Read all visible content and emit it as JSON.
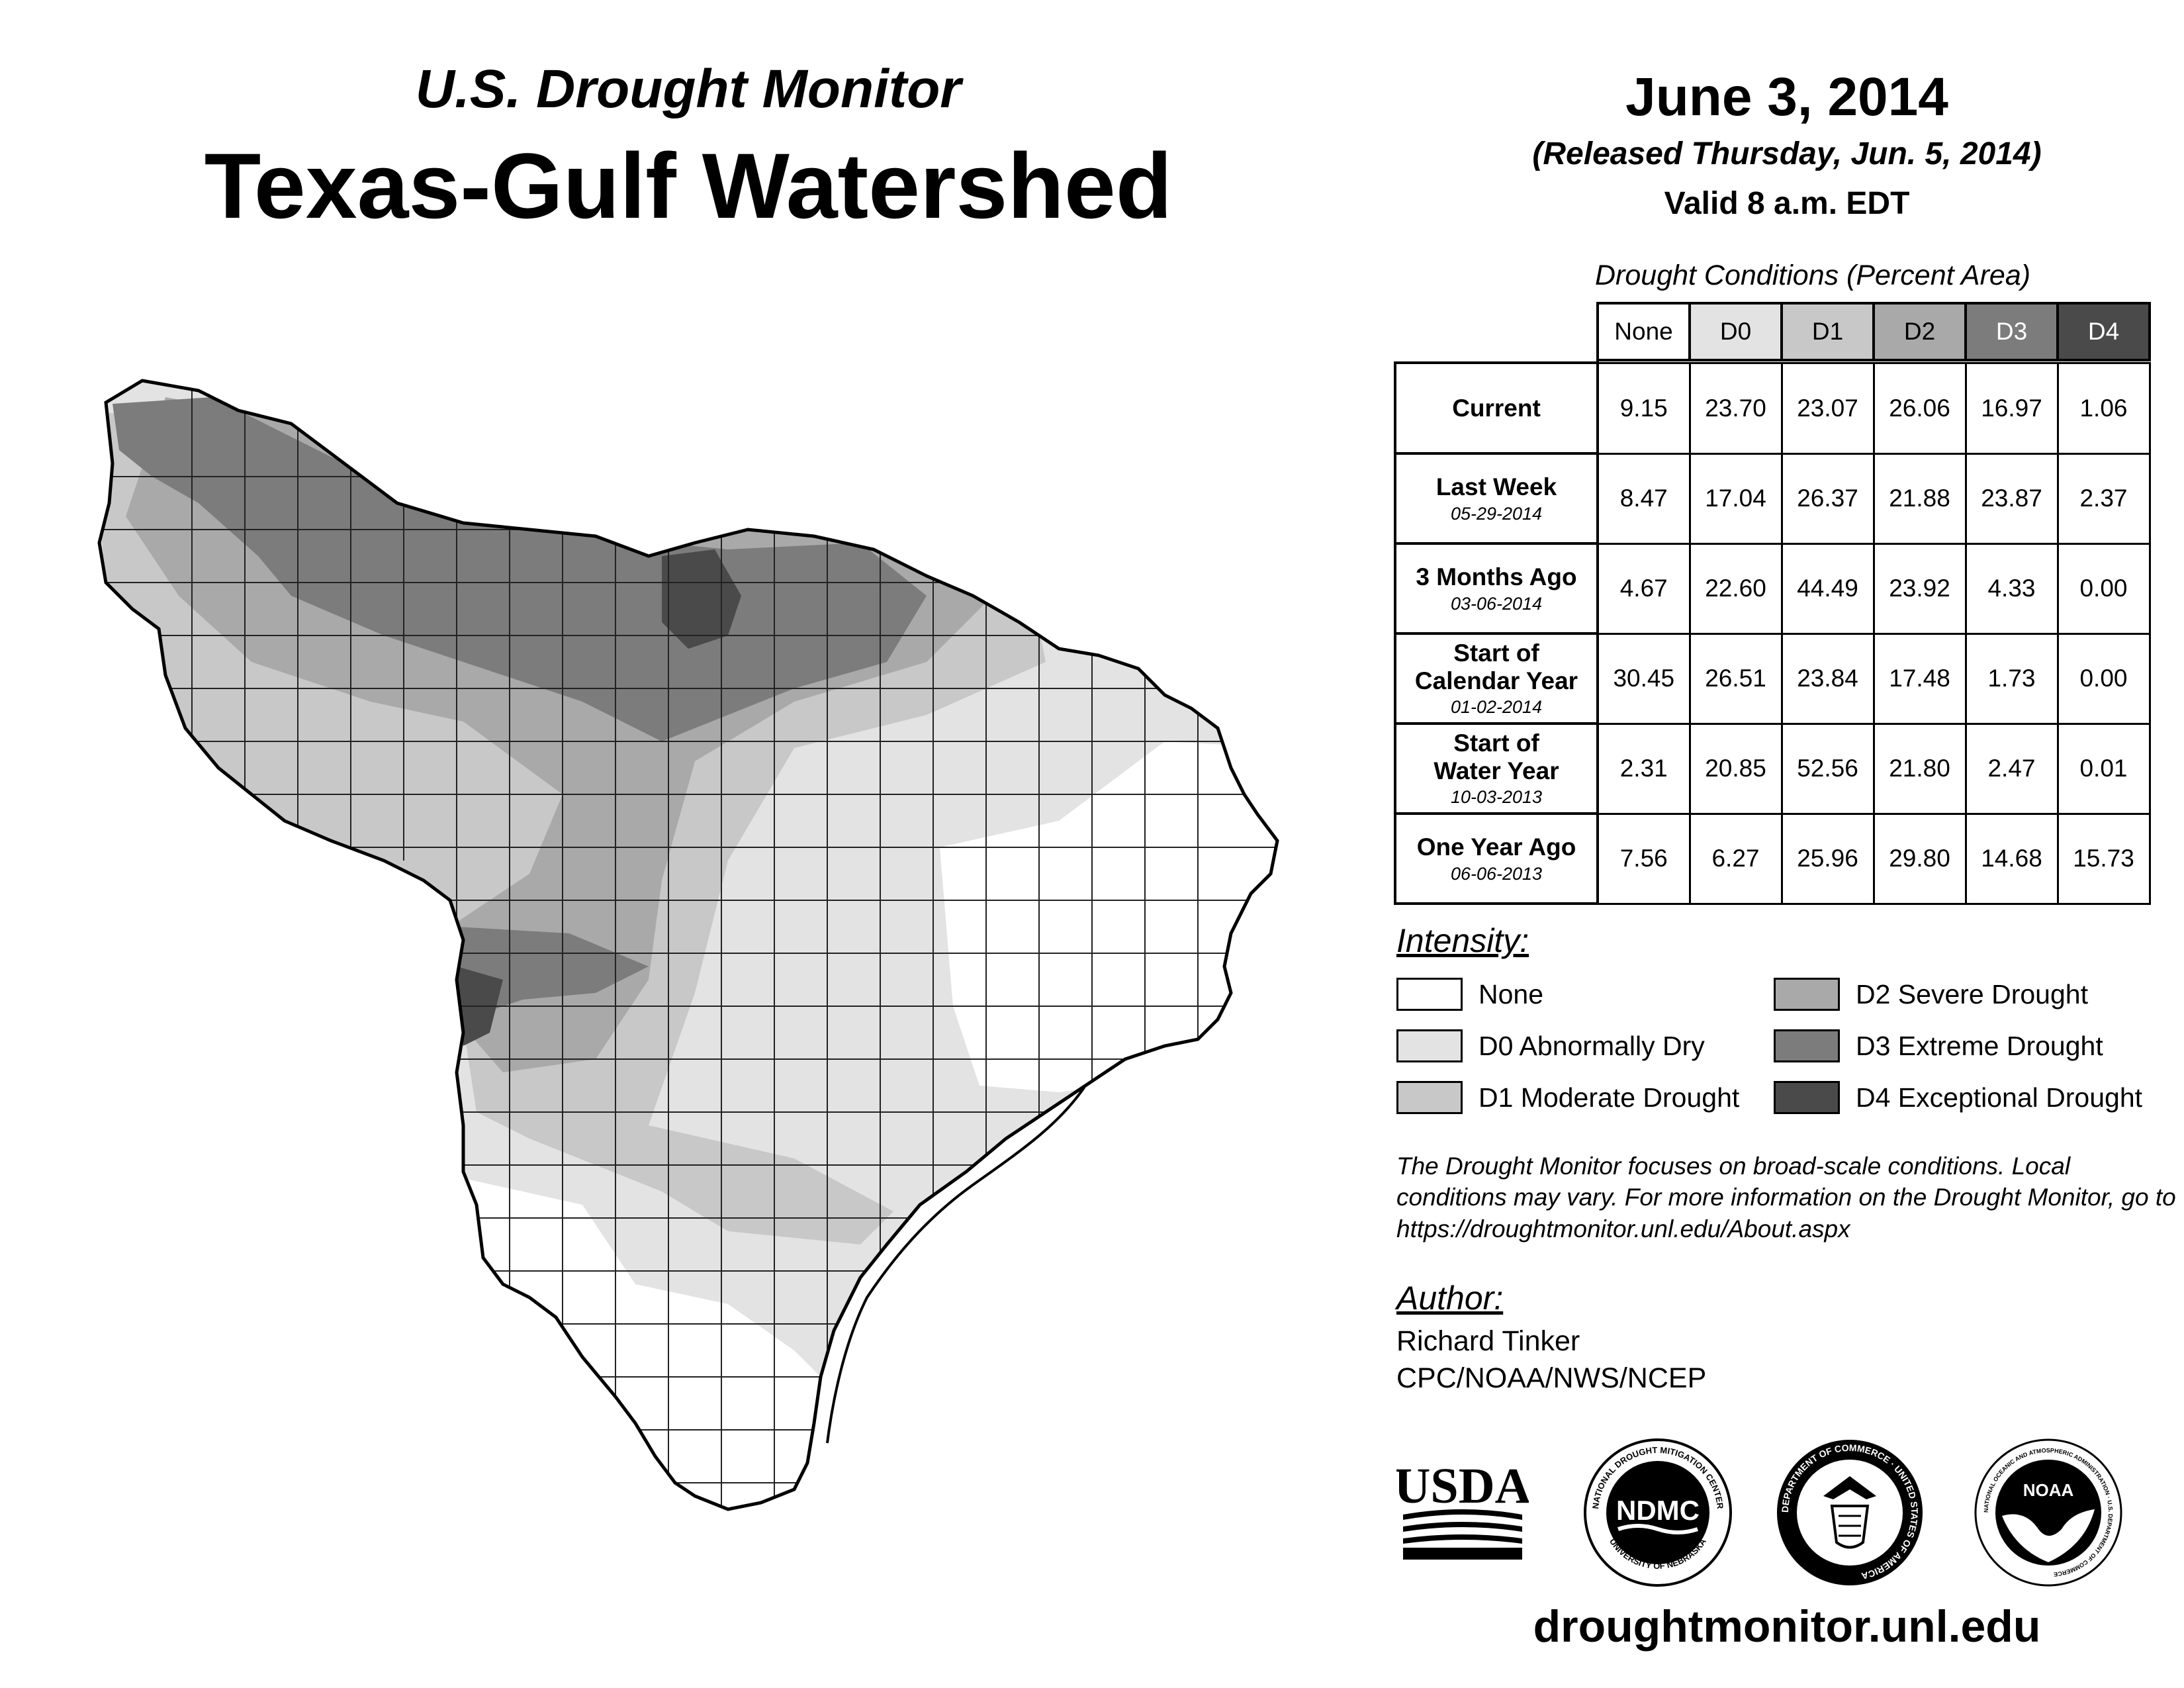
{
  "header": {
    "subtitle": "U.S. Drought Monitor",
    "title": "Texas-Gulf Watershed",
    "date": "June 3, 2014",
    "released": "(Released Thursday, Jun. 5, 2014)",
    "valid": "Valid 8 a.m. EDT"
  },
  "table": {
    "caption": "Drought Conditions (Percent Area)",
    "columns": [
      "None",
      "D0",
      "D1",
      "D2",
      "D3",
      "D4"
    ],
    "rows": [
      {
        "label": "Current",
        "date": "",
        "values": [
          "9.15",
          "23.70",
          "23.07",
          "26.06",
          "16.97",
          "1.06"
        ]
      },
      {
        "label": "Last Week",
        "date": "05-29-2014",
        "values": [
          "8.47",
          "17.04",
          "26.37",
          "21.88",
          "23.87",
          "2.37"
        ]
      },
      {
        "label": "3 Months Ago",
        "date": "03-06-2014",
        "values": [
          "4.67",
          "22.60",
          "44.49",
          "23.92",
          "4.33",
          "0.00"
        ]
      },
      {
        "label": "Start of Calendar Year",
        "date": "01-02-2014",
        "values": [
          "30.45",
          "26.51",
          "23.84",
          "17.48",
          "1.73",
          "0.00"
        ]
      },
      {
        "label": "Start of Water Year",
        "date": "10-03-2013",
        "values": [
          "2.31",
          "20.85",
          "52.56",
          "21.80",
          "2.47",
          "0.01"
        ]
      },
      {
        "label": "One Year Ago",
        "date": "06-06-2013",
        "values": [
          "7.56",
          "6.27",
          "25.96",
          "29.80",
          "14.68",
          "15.73"
        ]
      }
    ]
  },
  "legend": {
    "title": "Intensity:",
    "items": [
      {
        "label": "None",
        "color": "#ffffff"
      },
      {
        "label": "D0 Abnormally Dry",
        "color": "#e3e3e3"
      },
      {
        "label": "D1 Moderate Drought",
        "color": "#c8c8c8"
      },
      {
        "label": "D2 Severe Drought",
        "color": "#a9a9a9"
      },
      {
        "label": "D3 Extreme Drought",
        "color": "#7c7c7c"
      },
      {
        "label": "D4 Exceptional Drought",
        "color": "#4a4a4a"
      }
    ]
  },
  "header_colors": [
    "#ffffff",
    "#e3e3e3",
    "#c8c8c8",
    "#a9a9a9",
    "#7c7c7c",
    "#4a4a4a"
  ],
  "note": "The Drought Monitor focuses on broad-scale conditions. Local conditions may vary. For more information on the Drought Monitor, go to https://droughtmonitor.unl.edu/About.aspx",
  "author": {
    "label": "Author:",
    "name": "Richard Tinker",
    "org": "CPC/NOAA/NWS/NCEP"
  },
  "logos": {
    "usda": "USDA",
    "ndmc": "NDMC",
    "ndmc_ring_top": "NATIONAL DROUGHT MITIGATION CENTER",
    "ndmc_ring_bottom": "UNIVERSITY OF NEBRASKA",
    "doc_ring": "DEPARTMENT OF COMMERCE · UNITED STATES OF AMERICA",
    "noaa": "NOAA",
    "noaa_ring": "NATIONAL OCEANIC AND ATMOSPHERIC ADMINISTRATION · U.S. DEPARTMENT OF COMMERCE"
  },
  "website": "droughtmonitor.unl.edu"
}
